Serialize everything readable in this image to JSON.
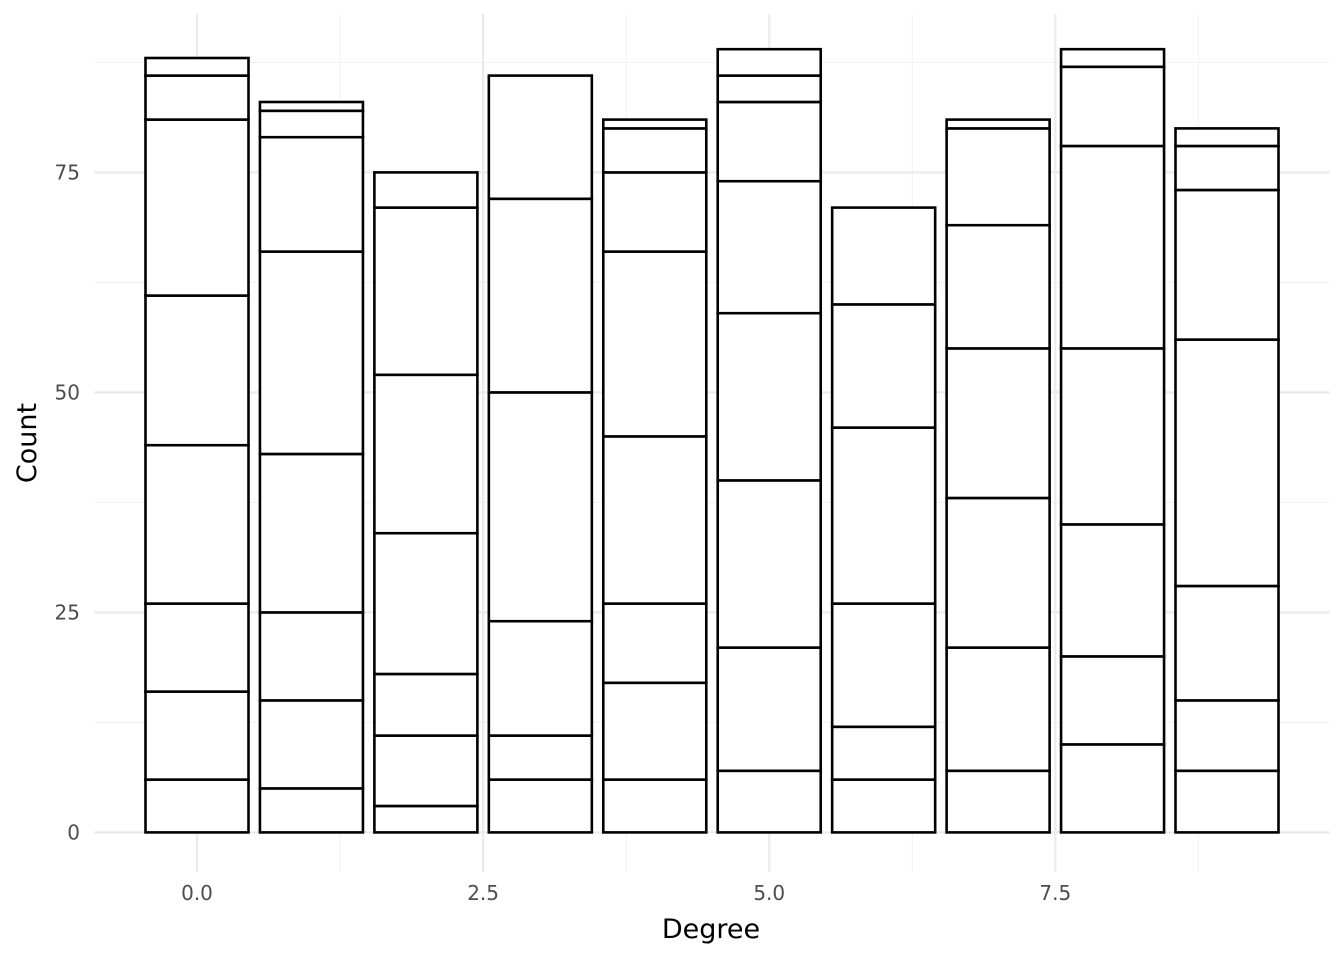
{
  "chart_data": {
    "type": "bar",
    "stacked": true,
    "xlabel": "Degree",
    "ylabel": "Count",
    "xlim": [
      -0.9,
      9.9
    ],
    "ylim": [
      -4.5,
      93
    ],
    "x_ticks": [
      {
        "value": 0,
        "label": "0.0"
      },
      {
        "value": 2.5,
        "label": "2.5"
      },
      {
        "value": 5,
        "label": "5.0"
      },
      {
        "value": 7.5,
        "label": "7.5"
      }
    ],
    "y_ticks": [
      {
        "value": 0,
        "label": "0"
      },
      {
        "value": 25,
        "label": "25"
      },
      {
        "value": 50,
        "label": "50"
      },
      {
        "value": 75,
        "label": "75"
      }
    ],
    "bar_width": 0.9,
    "fill_color": "#ffffff",
    "outline_color": "#000000",
    "grid_color": "#ebebeb",
    "bars": [
      {
        "x": 0,
        "boundaries": [
          0,
          6,
          16,
          26,
          44,
          61,
          81,
          86,
          88
        ]
      },
      {
        "x": 1,
        "boundaries": [
          0,
          5,
          15,
          25,
          43,
          66,
          79,
          82,
          83
        ]
      },
      {
        "x": 2,
        "boundaries": [
          0,
          3,
          11,
          18,
          34,
          52,
          71,
          75
        ]
      },
      {
        "x": 3,
        "boundaries": [
          0,
          6,
          11,
          24,
          50,
          72,
          86
        ]
      },
      {
        "x": 4,
        "boundaries": [
          0,
          6,
          17,
          26,
          45,
          66,
          75,
          80,
          81
        ]
      },
      {
        "x": 5,
        "boundaries": [
          0,
          7,
          21,
          40,
          59,
          74,
          83,
          86,
          89
        ]
      },
      {
        "x": 6,
        "boundaries": [
          0,
          6,
          12,
          26,
          46,
          60,
          71
        ]
      },
      {
        "x": 7,
        "boundaries": [
          0,
          7,
          21,
          38,
          55,
          69,
          80,
          81
        ]
      },
      {
        "x": 8,
        "boundaries": [
          0,
          10,
          20,
          35,
          55,
          78,
          87,
          89
        ]
      },
      {
        "x": 9,
        "boundaries": [
          0,
          7,
          15,
          28,
          56,
          73,
          78,
          80
        ]
      }
    ]
  }
}
